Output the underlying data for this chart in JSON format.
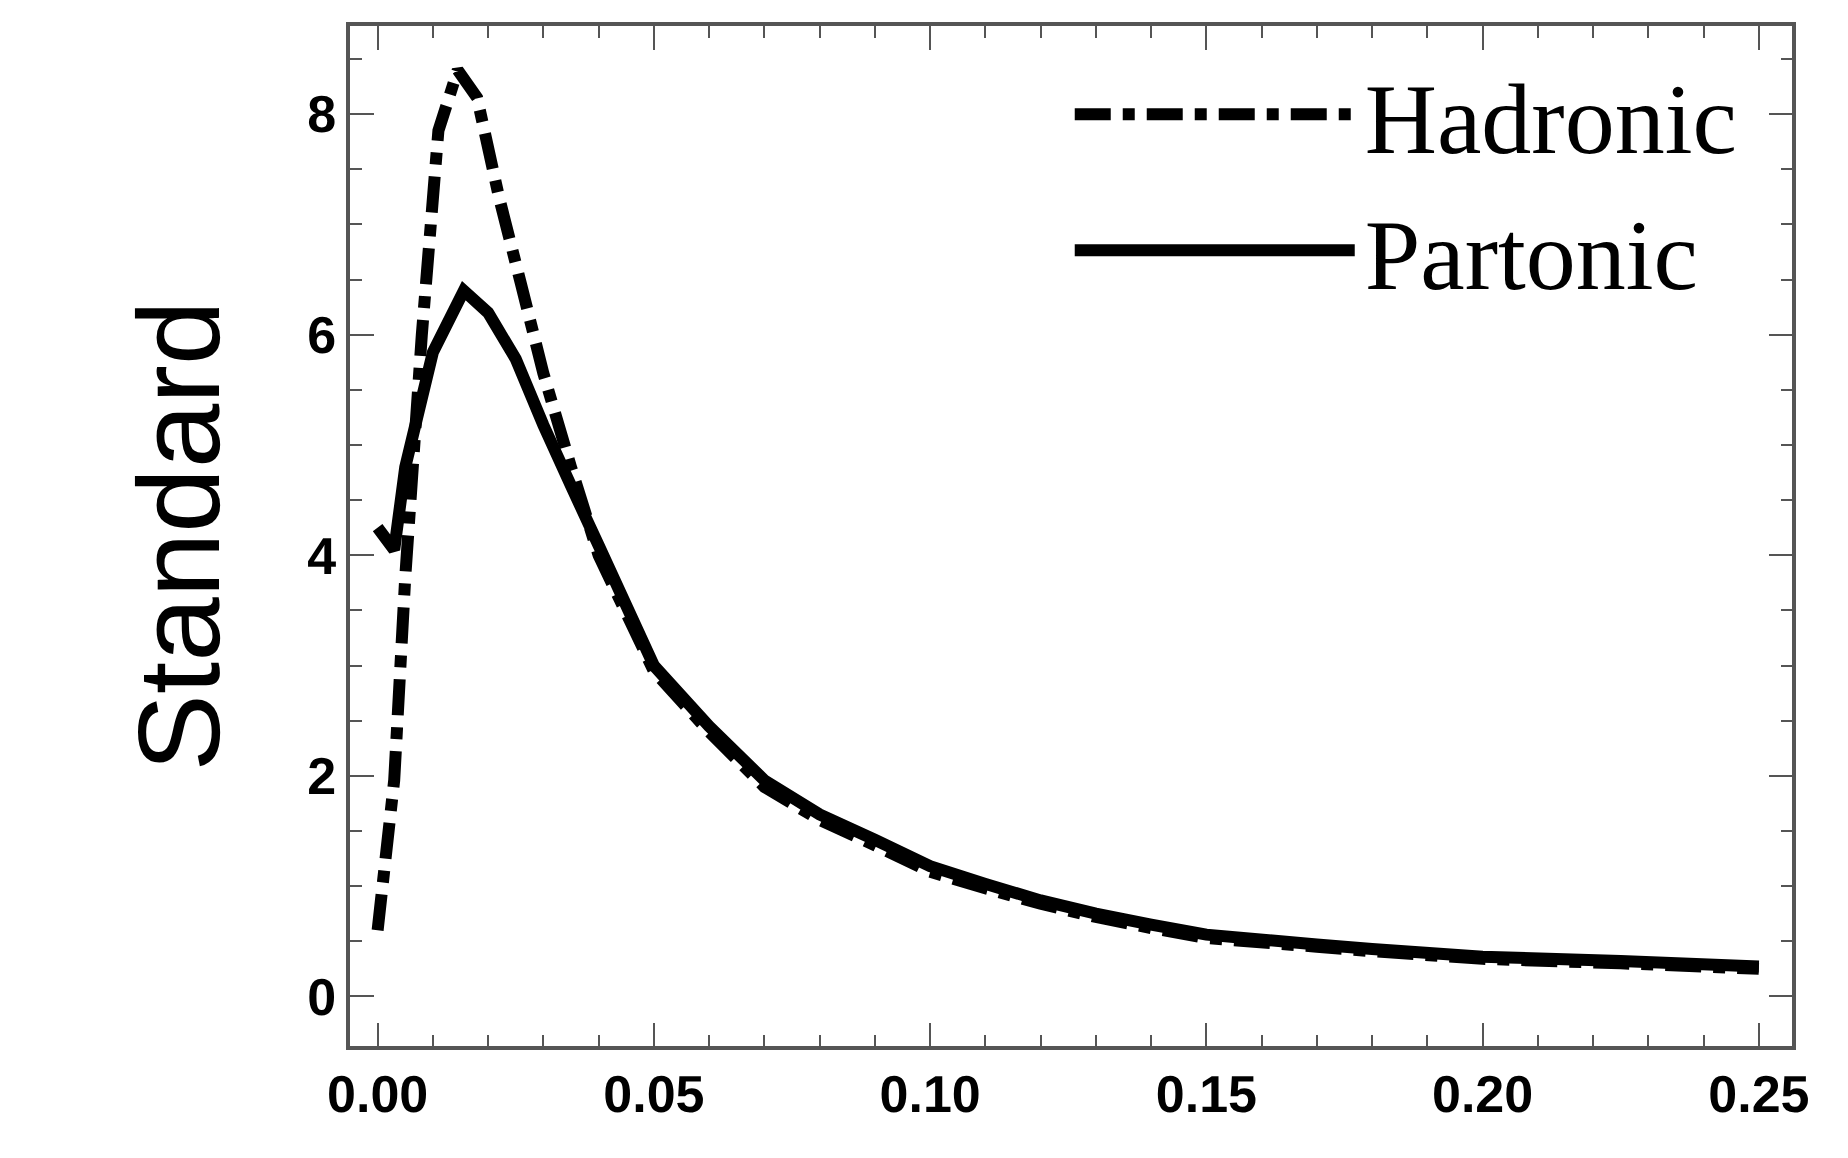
{
  "chart_data": {
    "type": "line",
    "ylabel": "Standard",
    "xlim": [
      -0.005,
      0.256
    ],
    "ylim": [
      -0.45,
      8.8
    ],
    "xticks": [
      {
        "value": 0,
        "label": "0.00"
      },
      {
        "value": 0.05,
        "label": "0.05"
      },
      {
        "value": 0.1,
        "label": "0.10"
      },
      {
        "value": 0.15,
        "label": "0.15"
      },
      {
        "value": 0.2,
        "label": "0.20"
      },
      {
        "value": 0.25,
        "label": "0.25"
      }
    ],
    "yticks": [
      0,
      2,
      4,
      6,
      8
    ],
    "legend": "top right",
    "series": [
      {
        "name": "Hadronic",
        "color": "#000000",
        "line_style": "dashdot",
        "x": [
          0,
          0.003,
          0.005,
          0.008,
          0.011,
          0.0145,
          0.018,
          0.022,
          0.026,
          0.03,
          0.035,
          0.04,
          0.05,
          0.06,
          0.07,
          0.08,
          0.09,
          0.1,
          0.11,
          0.12,
          0.13,
          0.14,
          0.15,
          0.17,
          0.18,
          0.2,
          0.225,
          0.25
        ],
        "values": [
          0.6,
          1.96,
          3.8,
          6.0,
          7.85,
          8.4,
          8.15,
          7.24,
          6.45,
          5.65,
          4.8,
          4.0,
          2.95,
          2.4,
          1.9,
          1.6,
          1.37,
          1.13,
          0.98,
          0.84,
          0.72,
          0.62,
          0.53,
          0.45,
          0.41,
          0.34,
          0.3,
          0.25
        ]
      },
      {
        "name": "Partonic",
        "color": "#000000",
        "line_style": "solid",
        "x": [
          0,
          0.003,
          0.005,
          0.01,
          0.0156,
          0.02,
          0.025,
          0.03,
          0.035,
          0.04,
          0.05,
          0.06,
          0.07,
          0.08,
          0.09,
          0.1,
          0.11,
          0.12,
          0.13,
          0.14,
          0.15,
          0.17,
          0.18,
          0.2,
          0.225,
          0.25
        ],
        "values": [
          4.25,
          4.05,
          4.8,
          5.84,
          6.4,
          6.2,
          5.78,
          5.18,
          4.63,
          4.09,
          3.0,
          2.45,
          1.96,
          1.65,
          1.42,
          1.18,
          1.02,
          0.87,
          0.75,
          0.65,
          0.56,
          0.47,
          0.43,
          0.36,
          0.32,
          0.27
        ]
      }
    ]
  }
}
